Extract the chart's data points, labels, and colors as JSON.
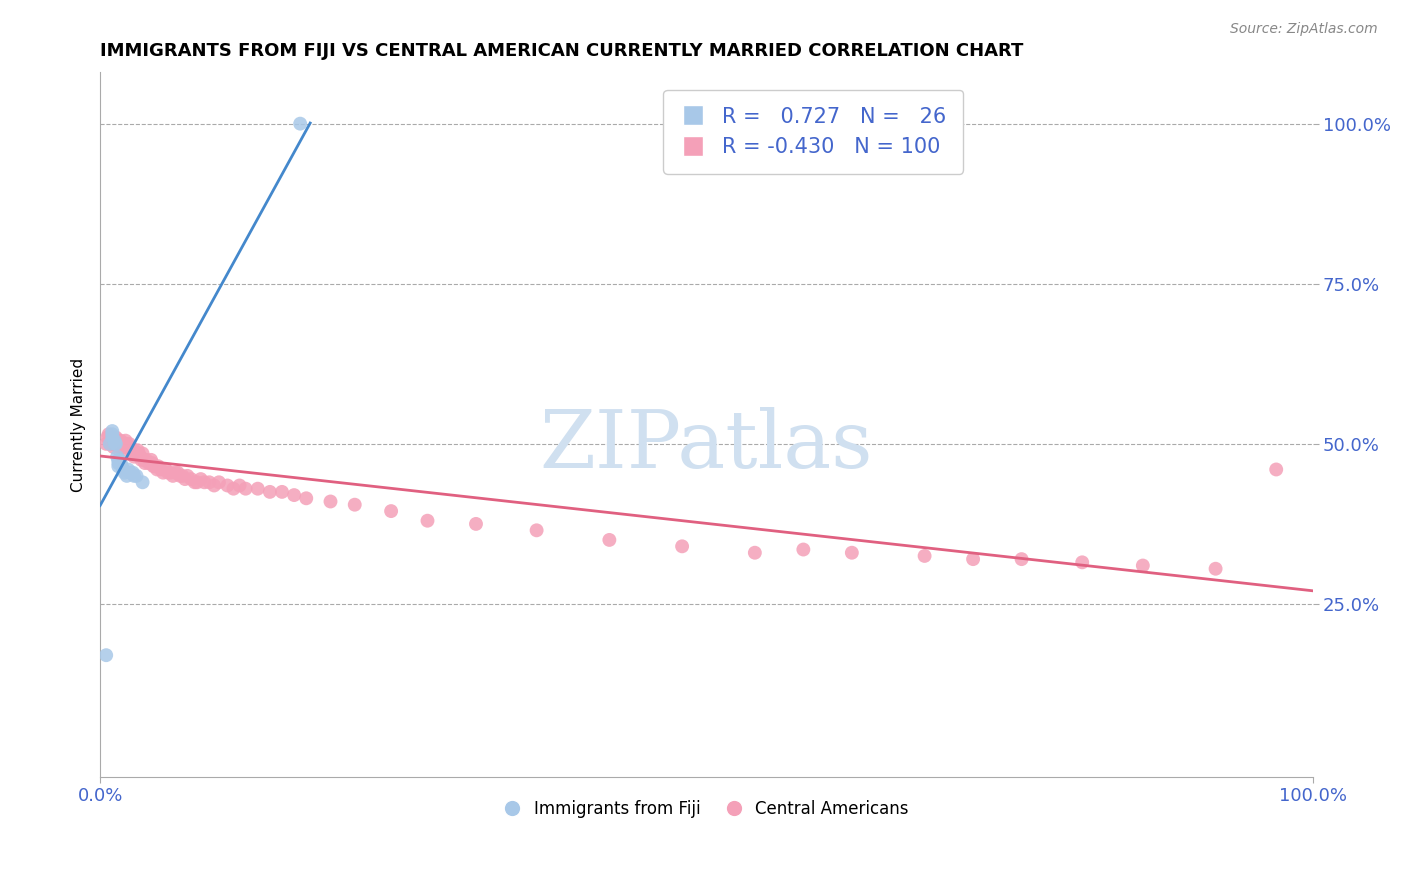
{
  "title": "IMMIGRANTS FROM FIJI VS CENTRAL AMERICAN CURRENTLY MARRIED CORRELATION CHART",
  "source_text": "Source: ZipAtlas.com",
  "ylabel": "Currently Married",
  "fiji_R": 0.727,
  "fiji_N": 26,
  "central_R": -0.43,
  "central_N": 100,
  "fiji_color": "#a8c8e8",
  "central_color": "#f4a0b8",
  "fiji_line_color": "#4488cc",
  "central_line_color": "#e06080",
  "background_color": "#ffffff",
  "grid_color": "#aaaaaa",
  "watermark_color": "#d0e0f0",
  "ytick_color": "#4466cc",
  "xtick_color": "#4466cc",
  "fiji_x": [
    0.005,
    0.008,
    0.01,
    0.01,
    0.01,
    0.012,
    0.012,
    0.013,
    0.014,
    0.015,
    0.015,
    0.015,
    0.016,
    0.016,
    0.017,
    0.018,
    0.019,
    0.02,
    0.022,
    0.023,
    0.025,
    0.027,
    0.028,
    0.03,
    0.035,
    0.165
  ],
  "fiji_y": [
    0.17,
    0.5,
    0.51,
    0.52,
    0.515,
    0.5,
    0.505,
    0.5,
    0.48,
    0.475,
    0.47,
    0.465,
    0.475,
    0.47,
    0.47,
    0.465,
    0.46,
    0.455,
    0.45,
    0.46,
    0.455,
    0.455,
    0.45,
    0.45,
    0.44,
    1.0
  ],
  "central_x": [
    0.005,
    0.006,
    0.007,
    0.008,
    0.009,
    0.01,
    0.01,
    0.011,
    0.012,
    0.012,
    0.013,
    0.013,
    0.014,
    0.015,
    0.015,
    0.016,
    0.016,
    0.017,
    0.017,
    0.018,
    0.018,
    0.019,
    0.02,
    0.02,
    0.021,
    0.021,
    0.022,
    0.023,
    0.024,
    0.025,
    0.025,
    0.026,
    0.027,
    0.028,
    0.028,
    0.029,
    0.03,
    0.031,
    0.032,
    0.033,
    0.034,
    0.035,
    0.036,
    0.037,
    0.038,
    0.04,
    0.041,
    0.042,
    0.043,
    0.044,
    0.045,
    0.047,
    0.048,
    0.05,
    0.052,
    0.054,
    0.056,
    0.058,
    0.06,
    0.062,
    0.064,
    0.066,
    0.068,
    0.07,
    0.072,
    0.075,
    0.078,
    0.08,
    0.083,
    0.086,
    0.09,
    0.094,
    0.098,
    0.105,
    0.11,
    0.115,
    0.12,
    0.13,
    0.14,
    0.15,
    0.16,
    0.17,
    0.19,
    0.21,
    0.24,
    0.27,
    0.31,
    0.36,
    0.42,
    0.48,
    0.54,
    0.58,
    0.62,
    0.68,
    0.72,
    0.76,
    0.81,
    0.86,
    0.92,
    0.97
  ],
  "central_y": [
    0.5,
    0.51,
    0.515,
    0.5,
    0.505,
    0.5,
    0.51,
    0.495,
    0.505,
    0.5,
    0.5,
    0.51,
    0.5,
    0.505,
    0.5,
    0.495,
    0.5,
    0.5,
    0.505,
    0.495,
    0.5,
    0.495,
    0.5,
    0.5,
    0.5,
    0.505,
    0.495,
    0.49,
    0.5,
    0.495,
    0.495,
    0.49,
    0.485,
    0.48,
    0.49,
    0.485,
    0.485,
    0.49,
    0.485,
    0.48,
    0.475,
    0.485,
    0.475,
    0.47,
    0.475,
    0.47,
    0.47,
    0.475,
    0.47,
    0.465,
    0.465,
    0.46,
    0.465,
    0.46,
    0.455,
    0.46,
    0.455,
    0.455,
    0.45,
    0.455,
    0.455,
    0.45,
    0.45,
    0.445,
    0.45,
    0.445,
    0.44,
    0.44,
    0.445,
    0.44,
    0.44,
    0.435,
    0.44,
    0.435,
    0.43,
    0.435,
    0.43,
    0.43,
    0.425,
    0.425,
    0.42,
    0.415,
    0.41,
    0.405,
    0.395,
    0.38,
    0.375,
    0.365,
    0.35,
    0.34,
    0.33,
    0.335,
    0.33,
    0.325,
    0.32,
    0.32,
    0.315,
    0.31,
    0.305,
    0.46
  ],
  "yticks": [
    0.25,
    0.5,
    0.75,
    1.0
  ],
  "ytick_labels": [
    "25.0%",
    "50.0%",
    "75.0%",
    "100.0%"
  ],
  "xticks": [
    0.0,
    1.0
  ],
  "xtick_labels": [
    "0.0%",
    "100.0%"
  ],
  "ylim": [
    -0.02,
    1.08
  ],
  "xlim": [
    0.0,
    1.0
  ],
  "title_fontsize": 13,
  "axis_label_fontsize": 11,
  "legend_fontsize": 14,
  "source_fontsize": 10
}
